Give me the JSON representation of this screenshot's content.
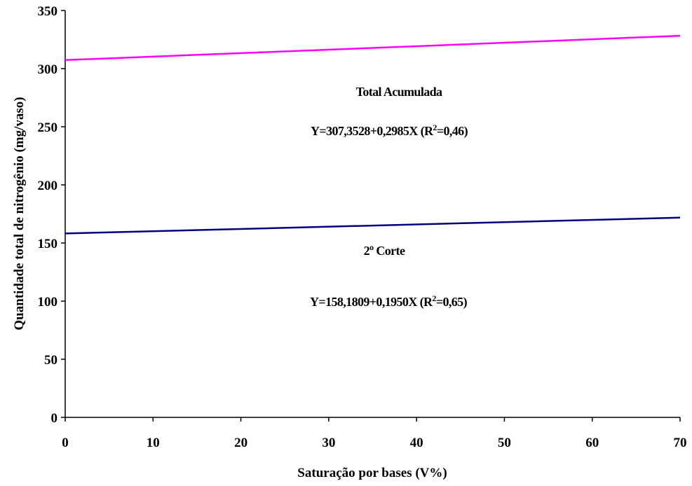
{
  "chart_data": {
    "type": "line",
    "x_label": "Saturação por bases (V%)",
    "y_label": "Quantidade total de nitrogênio (mg/vaso)",
    "xlim": [
      0,
      70
    ],
    "xticks": [
      0,
      10,
      20,
      30,
      40,
      50,
      60,
      70
    ],
    "ylim": [
      0,
      350
    ],
    "yticks": [
      0,
      50,
      100,
      150,
      200,
      250,
      300,
      350
    ],
    "grid": false,
    "series": [
      {
        "color": "#ff00ff",
        "x": [
          0,
          70
        ],
        "values": [
          307.35,
          328.25
        ]
      },
      {
        "color": "#000080",
        "x": [
          0,
          70
        ],
        "values": [
          158.18,
          171.83
        ]
      }
    ],
    "annotations": [
      {
        "parts": [
          {
            "text": "Total Acumulada",
            "sup": false
          }
        ]
      },
      {
        "parts": [
          {
            "text": "Y=307,3528+0,2985X (R",
            "sup": false
          },
          {
            "text": "2",
            "sup": true
          },
          {
            "text": "=0,46)",
            "sup": false
          }
        ]
      },
      {
        "parts": [
          {
            "text": "2",
            "sup": false
          },
          {
            "text": "o",
            "sup": true
          },
          {
            "text": "  Corte",
            "sup": false
          }
        ]
      },
      {
        "parts": [
          {
            "text": "Y=158,1809+0,1950X (R",
            "sup": false
          },
          {
            "text": "2",
            "sup": true
          },
          {
            "text": "=0,65)",
            "sup": false
          }
        ]
      }
    ]
  }
}
